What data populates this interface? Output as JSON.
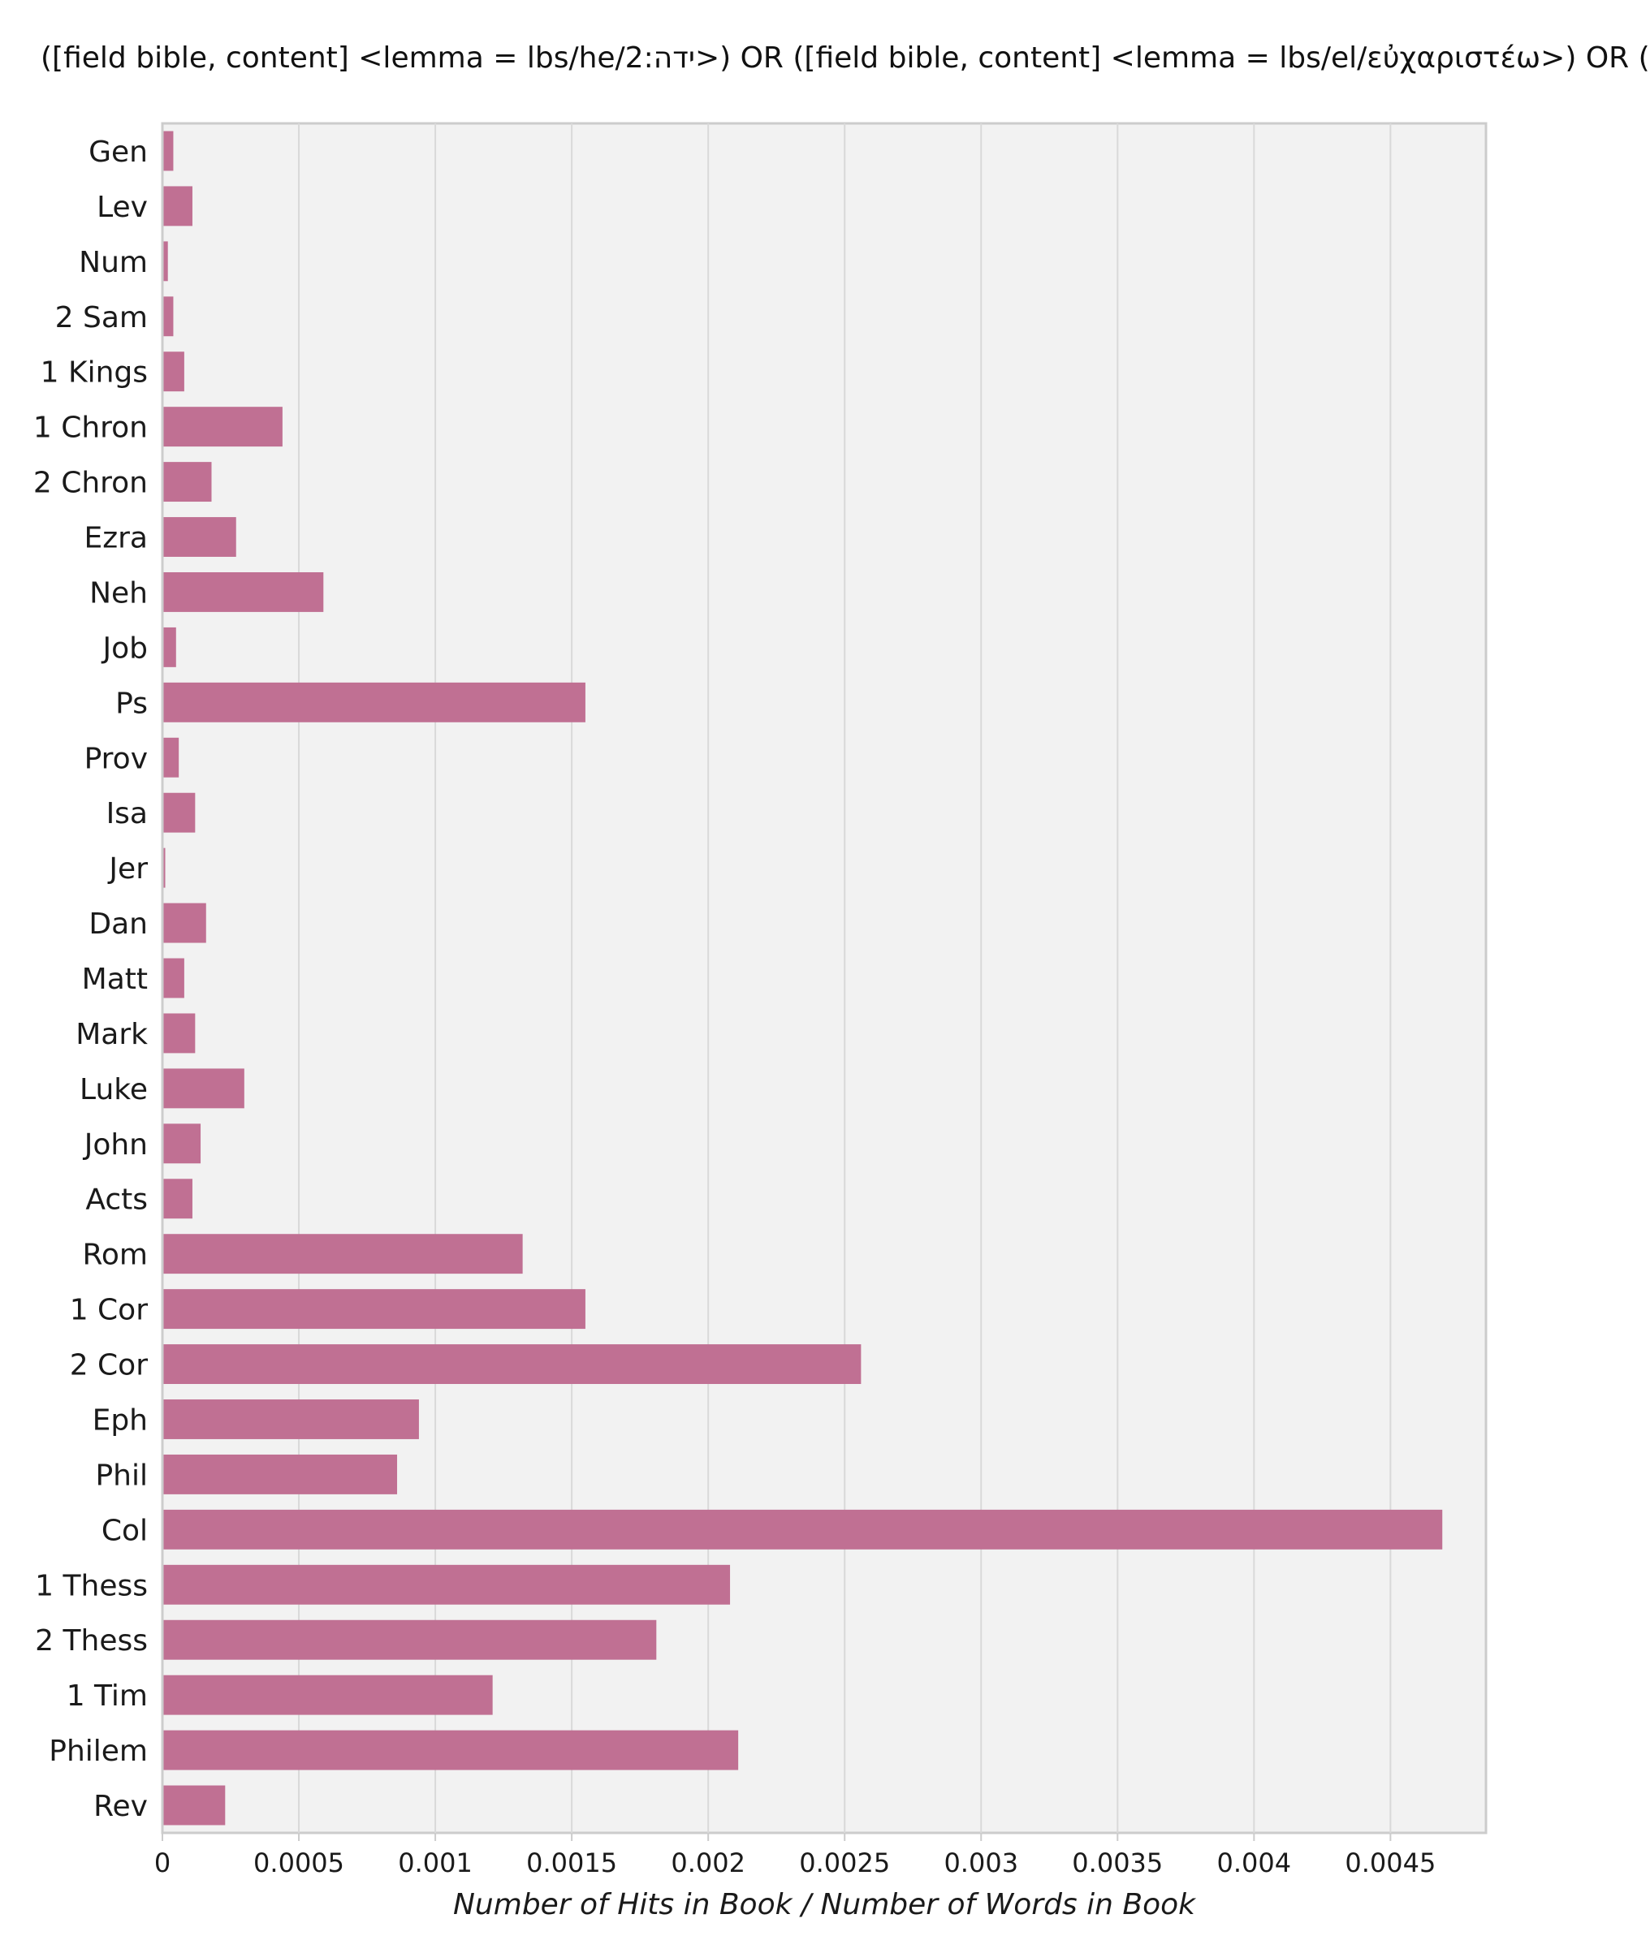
{
  "chart_data": {
    "type": "bar",
    "orientation": "horizontal",
    "title": "([field bible, content] <lemma = lbs/he/2:ידה>) OR ([field bible, content] <lemma = lbs/el/εὐχαριστέω>) OR (",
    "xlabel": "Number of Hits in Book / Number of Words in Book",
    "ylabel": "",
    "xlim": [
      0,
      0.00485
    ],
    "x_ticks": [
      {
        "value": 0,
        "label": "0"
      },
      {
        "value": 0.0005,
        "label": "0.0005"
      },
      {
        "value": 0.001,
        "label": "0.001"
      },
      {
        "value": 0.0015,
        "label": "0.0015"
      },
      {
        "value": 0.002,
        "label": "0.002"
      },
      {
        "value": 0.0025,
        "label": "0.0025"
      },
      {
        "value": 0.003,
        "label": "0.003"
      },
      {
        "value": 0.0035,
        "label": "0.0035"
      },
      {
        "value": 0.004,
        "label": "0.004"
      },
      {
        "value": 0.0045,
        "label": "0.0045"
      }
    ],
    "grid": "vertical",
    "legend": "none",
    "colors": {
      "bar": "#c07093",
      "plot_background": "#f2f2f2",
      "grid": "#d9d9d9",
      "frame": "#cccccc"
    },
    "categories": [
      "Gen",
      "Lev",
      "Num",
      "2 Sam",
      "1 Kings",
      "1 Chron",
      "2 Chron",
      "Ezra",
      "Neh",
      "Job",
      "Ps",
      "Prov",
      "Isa",
      "Jer",
      "Dan",
      "Matt",
      "Mark",
      "Luke",
      "John",
      "Acts",
      "Rom",
      "1 Cor",
      "2 Cor",
      "Eph",
      "Phil",
      "Col",
      "1 Thess",
      "2 Thess",
      "1 Tim",
      "Philem",
      "Rev"
    ],
    "values": [
      4e-05,
      0.00011,
      2e-05,
      4e-05,
      8e-05,
      0.00044,
      0.00018,
      0.00027,
      0.00059,
      5e-05,
      0.00155,
      6e-05,
      0.00012,
      1e-05,
      0.00016,
      8e-05,
      0.00012,
      0.0003,
      0.00014,
      0.00011,
      0.00132,
      0.00155,
      0.00256,
      0.00094,
      0.00086,
      0.00469,
      0.00208,
      0.00181,
      0.00121,
      0.00211,
      0.00023
    ]
  }
}
